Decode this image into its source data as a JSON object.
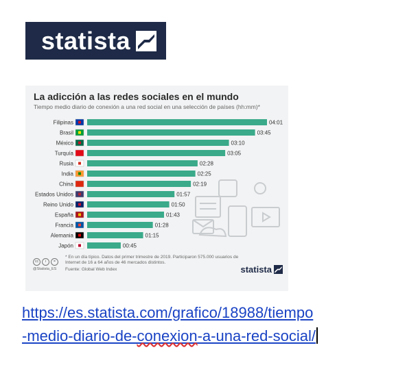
{
  "logo": {
    "text": "statista"
  },
  "chart_data": {
    "type": "bar",
    "title": "La adicción a las redes sociales en el mundo",
    "subtitle": "Tiempo medio diario de conexión a una red social en una selección de países (hh:mm)*",
    "categories": [
      "Filipinas",
      "Brasil",
      "México",
      "Turquía",
      "Rusia",
      "India",
      "China",
      "Estados Unidos",
      "Reino Unido",
      "España",
      "Francia",
      "Alemania",
      "Japón"
    ],
    "values": [
      241,
      225,
      190,
      185,
      148,
      145,
      139,
      117,
      110,
      103,
      88,
      75,
      45
    ],
    "value_labels": [
      "04:01",
      "03:45",
      "03:10",
      "03:05",
      "02:28",
      "02:25",
      "02:19",
      "01:57",
      "01:50",
      "01:43",
      "01:28",
      "01:15",
      "00:45"
    ],
    "units": "minutes",
    "bar_color": "#3aaa8a",
    "note": "* En un día típico. Datos del primer trimestre de 2019. Participaron 575.000 usuarios de Internet de 16 a 64 años de 46 mercados distintos.",
    "source": "Fuente: Global Web Index",
    "credit": "@Statista_ES",
    "footer_logo": "statista"
  },
  "link": {
    "text_part1": "https://es.statista.com/grafico/18988/tiempo",
    "text_part2": "-medio-diario-de-",
    "text_part3": "conexion",
    "text_part4": "-a-una-red-social/"
  }
}
